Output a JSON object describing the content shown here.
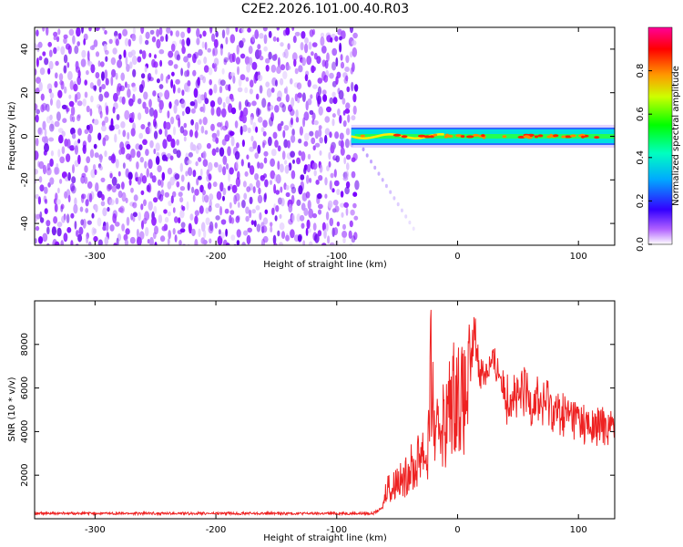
{
  "title": "C2E2.2026.101.00.40.R03",
  "chart_data": [
    {
      "type": "heatmap",
      "xlabel": "Height of straight line (km)",
      "ylabel": "Frequency (Hz)",
      "xlim": [
        -350,
        130
      ],
      "ylim": [
        -50,
        50
      ],
      "x_ticks": [
        -300,
        -200,
        -100,
        0,
        100
      ],
      "x_tick_labels": [
        "-300",
        "-200",
        "-100",
        "0",
        "100"
      ],
      "y_ticks": [
        -40,
        -20,
        0,
        20,
        40
      ],
      "y_tick_labels": [
        "-40",
        "-20",
        "0",
        "20",
        "40"
      ],
      "noise_region_x": [
        -350,
        -85
      ],
      "signal_start_x": -88,
      "signal_band_hz": [
        -4,
        4
      ],
      "colorbar": {
        "label": "Normalized spectral amplitude",
        "range": [
          0,
          1
        ],
        "ticks": [
          0.0,
          0.2,
          0.4,
          0.6,
          0.8
        ],
        "tick_labels": [
          "0.0",
          "0.2",
          "0.4",
          "0.6",
          "0.8"
        ],
        "colors": [
          "#ffffff",
          "#7f00ff",
          "#0000ff",
          "#00ffff",
          "#00ff00",
          "#ffff00",
          "#ff7f00",
          "#ff0000",
          "#ff00ff"
        ]
      },
      "grid": false
    },
    {
      "type": "line",
      "xlabel": "Height of straight line (km)",
      "ylabel": "SNR (10 * v/v)",
      "xlim": [
        -350,
        130
      ],
      "ylim": [
        0,
        10000
      ],
      "x_ticks": [
        -300,
        -200,
        -100,
        0,
        100
      ],
      "x_tick_labels": [
        "-300",
        "-200",
        "-100",
        "0",
        "100"
      ],
      "y_ticks": [
        2000,
        4000,
        6000,
        8000
      ],
      "y_tick_labels": [
        "2000",
        "4000",
        "6000",
        "8000"
      ],
      "line_color": "#ee2222",
      "grid": false,
      "series": [
        {
          "x": [
            -350,
            -300,
            -250,
            -200,
            -150,
            -100,
            -70,
            -62,
            -58,
            -55,
            -50,
            -45,
            -40,
            -35,
            -30,
            -25,
            -22,
            -18,
            -15,
            -10,
            -5,
            0,
            5,
            10,
            14,
            18,
            22,
            26,
            30,
            35,
            40,
            45,
            50,
            55,
            60,
            65,
            70,
            75,
            80,
            90,
            100,
            110,
            120,
            130
          ],
          "values": [
            250,
            250,
            250,
            250,
            250,
            250,
            250,
            500,
            1800,
            1300,
            2000,
            1700,
            2500,
            2300,
            3500,
            2800,
            7100,
            3200,
            5000,
            4500,
            5800,
            6200,
            5500,
            6500,
            8800,
            6900,
            6800,
            7100,
            7200,
            6800,
            5600,
            6200,
            5400,
            6000,
            5500,
            5800,
            5200,
            5600,
            5000,
            4900,
            4700,
            4200,
            4400,
            4300
          ]
        }
      ]
    }
  ]
}
